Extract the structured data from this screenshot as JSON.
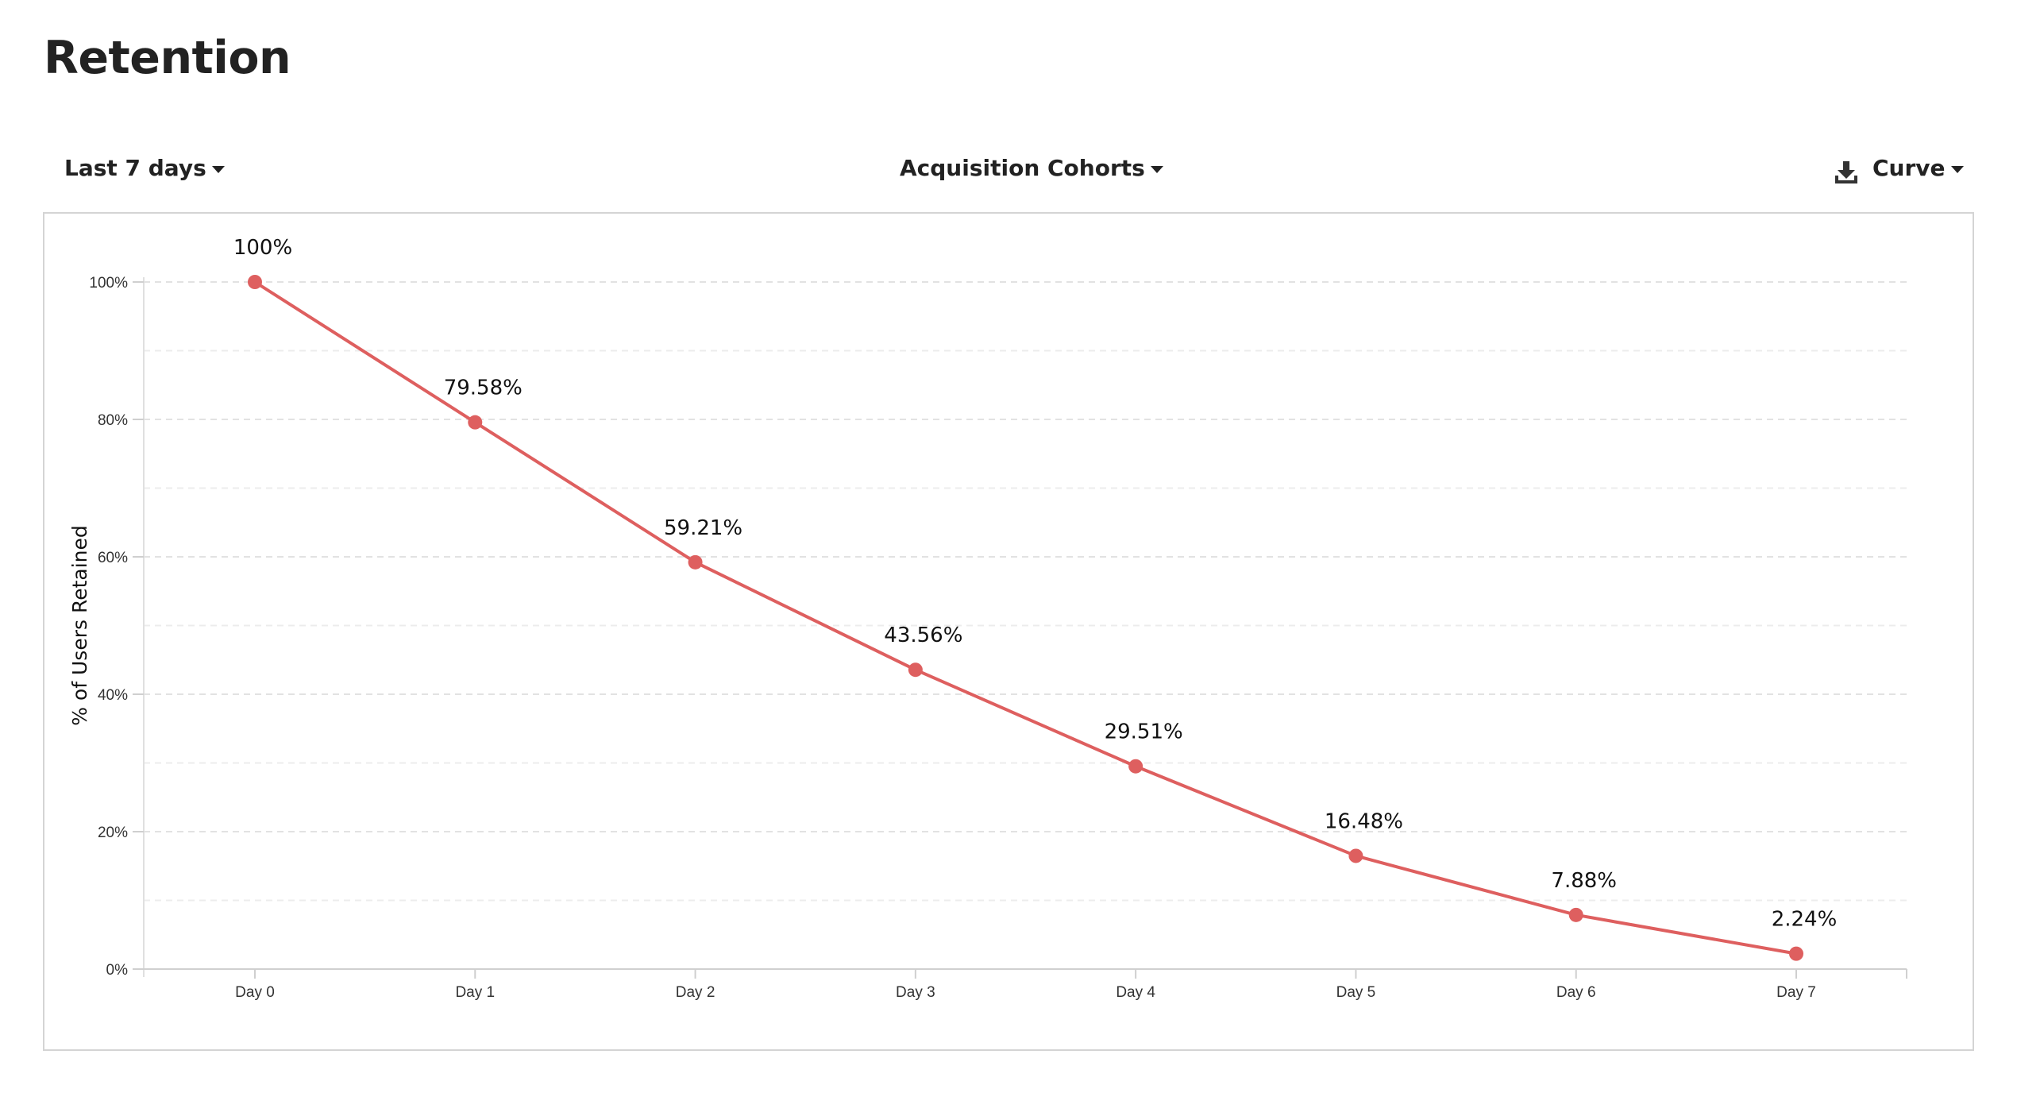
{
  "page": {
    "title": "Retention"
  },
  "toolbar": {
    "range_label": "Last 7 days",
    "cohort_label": "Acquisition Cohorts",
    "view_label": "Curve",
    "download_icon": "download-icon"
  },
  "chart_data": {
    "type": "line",
    "categories": [
      "Day 0",
      "Day 1",
      "Day 2",
      "Day 3",
      "Day 4",
      "Day 5",
      "Day 6",
      "Day 7"
    ],
    "series": [
      {
        "values": [
          100,
          79.58,
          59.21,
          43.56,
          29.51,
          16.48,
          7.88,
          2.24
        ],
        "labels": [
          "100%",
          "79.58%",
          "59.21%",
          "43.56%",
          "29.51%",
          "16.48%",
          "7.88%",
          "2.24%"
        ],
        "color": "#de5f5f"
      }
    ],
    "ylabel": "% of Users Retained",
    "xlabel": "",
    "ylim": [
      0,
      100
    ],
    "yticks": [
      0,
      20,
      40,
      60,
      80,
      100
    ],
    "ytick_labels": [
      "0%",
      "20%",
      "40%",
      "60%",
      "80%",
      "100%"
    ],
    "grid": true,
    "grid_style": "dashed",
    "legend": "none"
  }
}
